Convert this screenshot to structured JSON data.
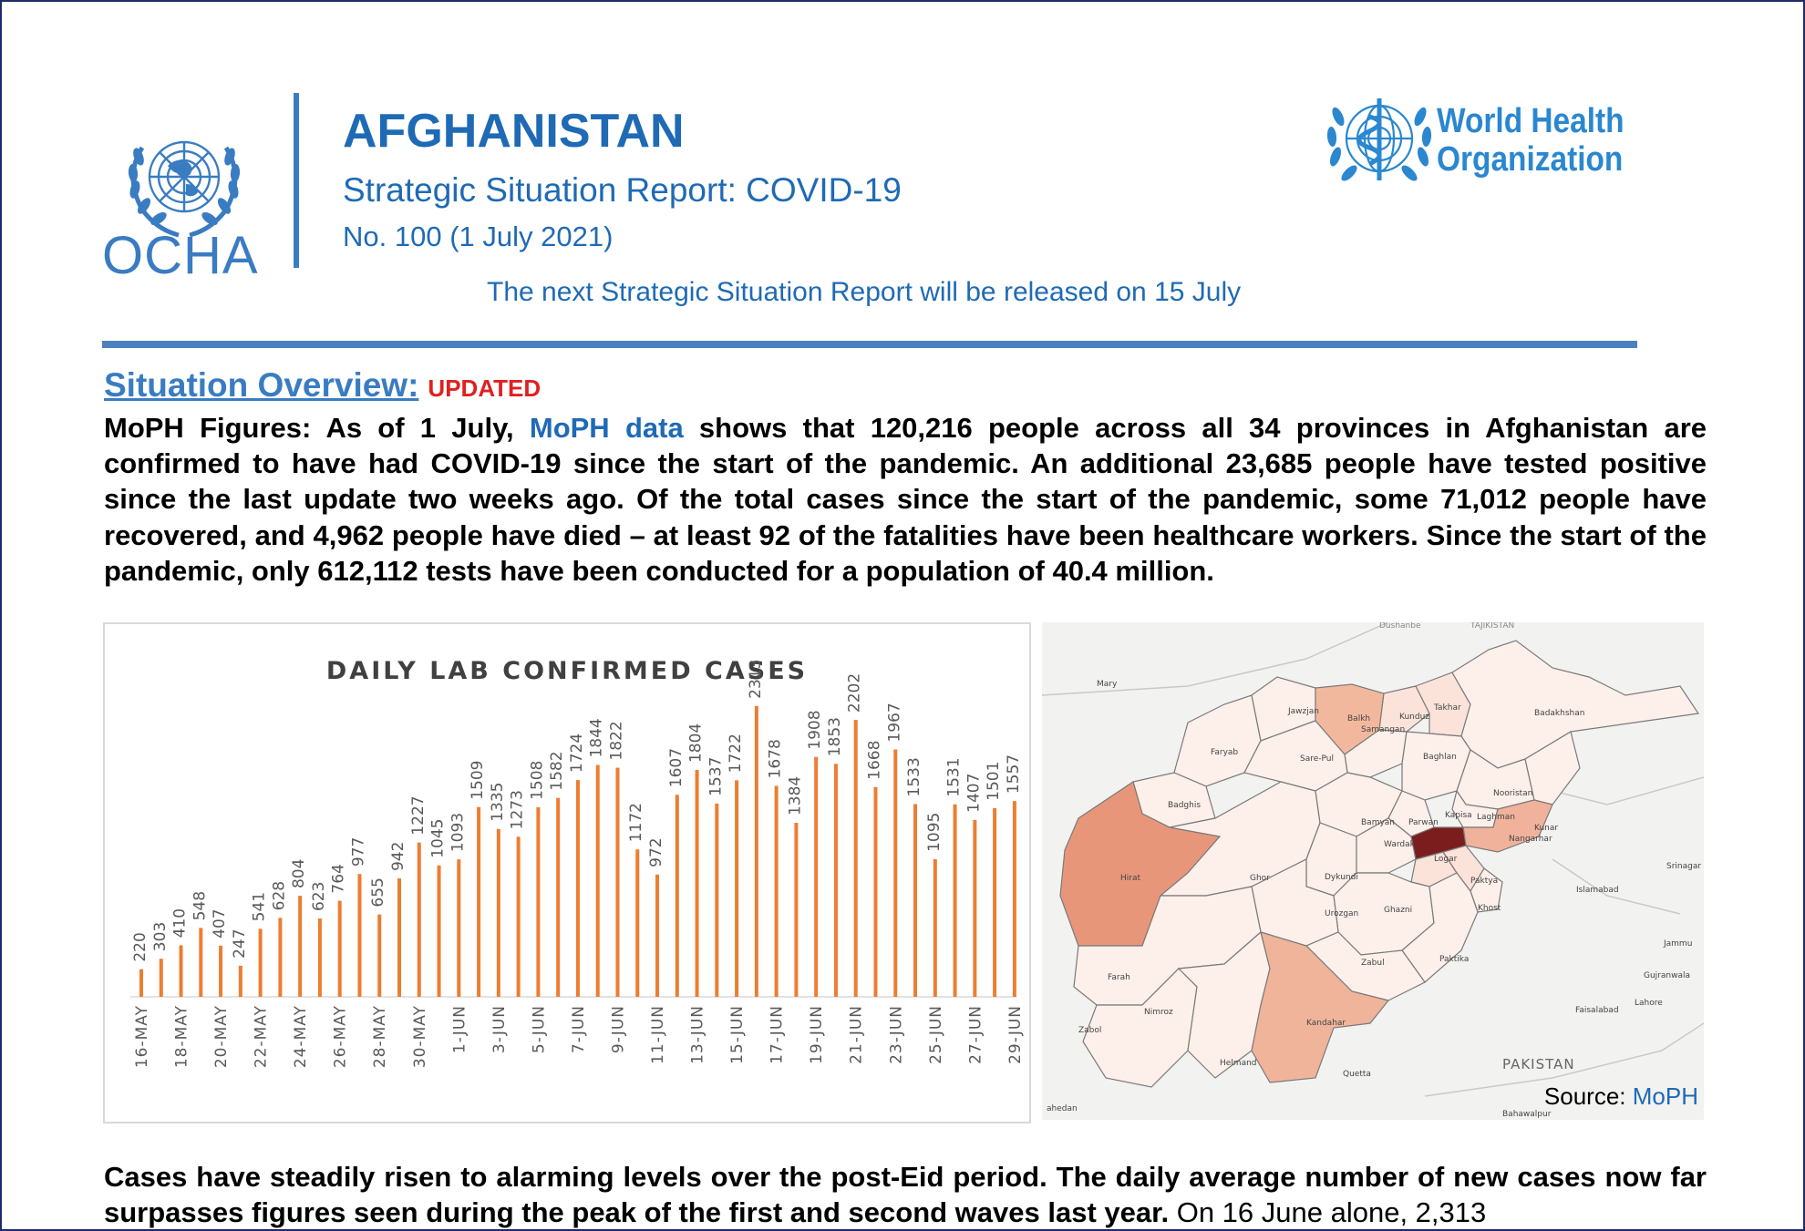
{
  "header": {
    "org_left": "OCHA",
    "title": "AFGHANISTAN",
    "subtitle": "Strategic Situation Report: COVID-19",
    "issue": "No. 100 (1 July 2021)",
    "next_report": "The next Strategic Situation Report will be released on 15 July",
    "org_right_line1": "World Health",
    "org_right_line2": "Organization"
  },
  "overview": {
    "heading": "Situation Overview:",
    "badge": "UPDATED",
    "p1_a": "MoPH Figures: As of 1 July, ",
    "p1_link": "MoPH data",
    "p1_b": " shows that 120,216 people across all 34 provinces in Afghanistan are confirmed to have had COVID-19 since the start of the pandemic. An additional 23,685 people have tested positive since the last update two weeks ago. Of the total cases since the start of the pandemic, some 71,012 people have recovered, and 4,962 people have died – at least 92 of the fatalities have been healthcare workers. Since the start of the pandemic, only 612,112 tests have been conducted for a population of 40.4 million.",
    "p2_bold": "Cases have steadily risen to alarming levels over the post-Eid period. The daily average number of new cases now far surpasses figures seen during the peak of the first and second waves last year.",
    "p2_normal": " On 16 June alone, 2,313"
  },
  "chart_data": {
    "type": "bar",
    "title": "DAILY LAB CONFIRMED CASES",
    "color": "#ed7d31",
    "categories": [
      "16-May",
      "17-May",
      "18-May",
      "19-May",
      "20-May",
      "21-May",
      "22-May",
      "23-May",
      "24-May",
      "25-May",
      "26-May",
      "27-May",
      "28-May",
      "29-May",
      "30-May",
      "31-May",
      "1-Jun",
      "2-Jun",
      "3-Jun",
      "4-Jun",
      "5-Jun",
      "6-Jun",
      "7-Jun",
      "8-Jun",
      "9-Jun",
      "10-Jun",
      "11-Jun",
      "12-Jun",
      "13-Jun",
      "14-Jun",
      "15-Jun",
      "16-Jun",
      "17-Jun",
      "18-Jun",
      "19-Jun",
      "20-Jun",
      "21-Jun",
      "22-Jun",
      "23-Jun",
      "24-Jun",
      "25-Jun",
      "26-Jun",
      "27-Jun",
      "28-Jun",
      "29-Jun"
    ],
    "tick_labels": [
      "16-MAY",
      "18-MAY",
      "20-MAY",
      "22-MAY",
      "24-MAY",
      "26-MAY",
      "28-MAY",
      "30-MAY",
      "1-JUN",
      "3-JUN",
      "5-JUN",
      "7-JUN",
      "9-JUN",
      "11-JUN",
      "13-JUN",
      "15-JUN",
      "17-JUN",
      "19-JUN",
      "21-JUN",
      "23-JUN",
      "25-JUN",
      "27-JUN",
      "29-JUN"
    ],
    "values": [
      220,
      303,
      410,
      548,
      407,
      247,
      541,
      628,
      804,
      623,
      764,
      977,
      655,
      942,
      1227,
      1045,
      1093,
      1509,
      1335,
      1273,
      1508,
      1582,
      1724,
      1844,
      1822,
      1172,
      972,
      1607,
      1804,
      1537,
      1722,
      2313,
      1678,
      1384,
      1908,
      1853,
      2202,
      1668,
      1967,
      1533,
      1095,
      1531,
      1407,
      1501,
      1557
    ],
    "ylim": [
      0,
      2500
    ],
    "grid": false,
    "legend": "none"
  },
  "map": {
    "source_label": "Source: ",
    "source_link": "MoPH",
    "labels": {
      "dushanbe": "Dushanbe",
      "tajikistan": "TAJIKISTAN",
      "mary": "Mary",
      "jawzjan": "Jawzjan",
      "balkh": "Balkh",
      "kunduz": "Kunduz",
      "takhar": "Takhar",
      "badakhshan": "Badakhshan",
      "faryab": "Faryab",
      "samangan": "Samangan",
      "baghlan": "Baghlan",
      "sarepul": "Sare-Pul",
      "badghis": "Badghis",
      "bamyan": "Bamyan",
      "parwan": "Parwan",
      "kapisa": "Kapisa",
      "nooristan": "Nooristan",
      "laghman": "Laghman",
      "kunar": "Kunar",
      "hirat": "Hirat",
      "ghor": "Ghor",
      "dykundi": "Dykundi",
      "wardak": "Wardak",
      "logar": "Logar",
      "nangarhar": "Nangarhar",
      "ghazni": "Ghazni",
      "paktya": "Paktya",
      "khost": "Khost",
      "urozgan": "Urozgan",
      "farah": "Farah",
      "zabul": "Zabul",
      "paktika": "Paktika",
      "nimroz": "Nimroz",
      "kandahar": "Kandahar",
      "helmand": "Helmand",
      "zabol": "Zabol",
      "islamabad": "Islamabad",
      "srinagar": "Srinagar",
      "jammu": "Jammu",
      "gujranwala": "Gujranwala",
      "lahore": "Lahore",
      "faisalabad": "Faisalabad",
      "pakistan": "PAKISTAN",
      "quetta": "Quetta",
      "bahawalpur": "Bahawalpur",
      "zahedan": "ahedan"
    },
    "colors": {
      "kabul": "#7b1d1d",
      "hirat": "#e8967a",
      "kandahar": "#f0b49a",
      "balkh": "#f2b89e",
      "nangarhar": "#f0b29a",
      "light": "#fbe3da",
      "lightest": "#fdf0ea",
      "border": "#7a7a7a",
      "background": "#f2f2f0"
    }
  }
}
